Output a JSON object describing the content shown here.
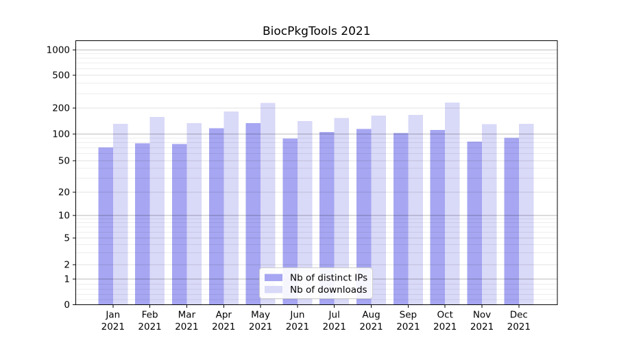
{
  "chart_data": {
    "type": "bar",
    "title": "BiocPkgTools 2021",
    "categories": [
      "Jan",
      "Feb",
      "Mar",
      "Apr",
      "May",
      "Jun",
      "Jul",
      "Aug",
      "Sep",
      "Oct",
      "Nov",
      "Dec"
    ],
    "x_year": "2021",
    "series": [
      {
        "name": "Nb of distinct IPs",
        "color": "#a6a6f2",
        "values": [
          71,
          79,
          77,
          117,
          134,
          89,
          106,
          115,
          103,
          112,
          82,
          91
        ]
      },
      {
        "name": "Nb of downloads",
        "color": "#d9d9f8",
        "values": [
          131,
          158,
          134,
          183,
          230,
          142,
          153,
          164,
          167,
          233,
          130,
          131
        ]
      }
    ],
    "yscale": "symlog",
    "y_ticks": [
      0,
      1,
      2,
      5,
      10,
      20,
      50,
      100,
      200,
      500,
      1000
    ],
    "ylim": [
      0,
      1300
    ],
    "xlabel": "",
    "ylabel": "",
    "grid": true,
    "legend_position": "lower center"
  }
}
